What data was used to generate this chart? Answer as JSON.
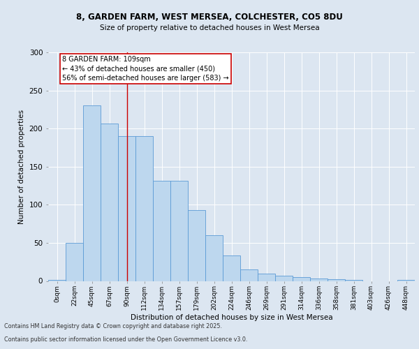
{
  "title1": "8, GARDEN FARM, WEST MERSEA, COLCHESTER, CO5 8DU",
  "title2": "Size of property relative to detached houses in West Mersea",
  "xlabel": "Distribution of detached houses by size in West Mersea",
  "ylabel": "Number of detached properties",
  "categories": [
    "0sqm",
    "22sqm",
    "45sqm",
    "67sqm",
    "90sqm",
    "112sqm",
    "134sqm",
    "157sqm",
    "179sqm",
    "202sqm",
    "224sqm",
    "246sqm",
    "269sqm",
    "291sqm",
    "314sqm",
    "336sqm",
    "358sqm",
    "381sqm",
    "403sqm",
    "426sqm",
    "448sqm"
  ],
  "values": [
    1,
    50,
    230,
    207,
    190,
    190,
    131,
    131,
    93,
    60,
    33,
    15,
    10,
    7,
    5,
    3,
    2,
    1,
    0,
    0,
    1
  ],
  "bar_color": "#bdd7ee",
  "bar_edge_color": "#5b9bd5",
  "bg_color": "#dce6f1",
  "plot_bg_color": "#dce6f1",
  "grid_color": "#ffffff",
  "annotation_text": "8 GARDEN FARM: 109sqm\n← 43% of detached houses are smaller (450)\n56% of semi-detached houses are larger (583) →",
  "annotation_box_color": "#ffffff",
  "annotation_box_edge": "#cc0000",
  "vline_color": "#cc0000",
  "vline_x_index": 4.5,
  "ylim": [
    0,
    300
  ],
  "yticks": [
    0,
    50,
    100,
    150,
    200,
    250,
    300
  ],
  "footer1": "Contains HM Land Registry data © Crown copyright and database right 2025.",
  "footer2": "Contains public sector information licensed under the Open Government Licence v3.0."
}
